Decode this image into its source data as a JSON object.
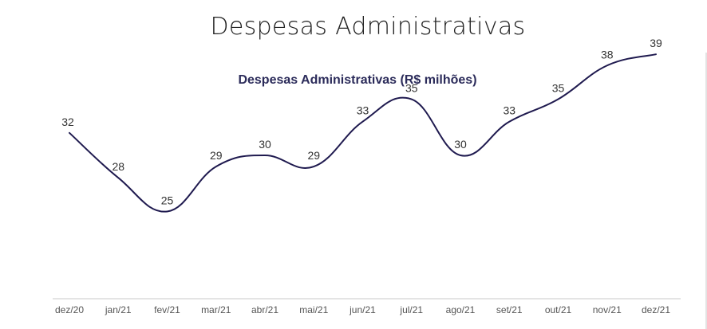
{
  "page": {
    "title": "Despesas Administrativas"
  },
  "chart_data": {
    "type": "line",
    "title": "Despesas Administrativas (R$ milhões)",
    "xlabel": "",
    "ylabel": "",
    "categories": [
      "dez/20",
      "jan/21",
      "fev/21",
      "mar/21",
      "abr/21",
      "mai/21",
      "jun/21",
      "jul/21",
      "ago/21",
      "set/21",
      "out/21",
      "nov/21",
      "dez/21"
    ],
    "series": [
      {
        "values": [
          32,
          28,
          25,
          29,
          30,
          29,
          33,
          35,
          30,
          33,
          35,
          38,
          39
        ]
      }
    ],
    "ylim": [
      19,
      41
    ],
    "grid": false,
    "legend": "none",
    "colors": {
      "line": "#1f1a4f",
      "axis": "#c8c8c8"
    }
  }
}
